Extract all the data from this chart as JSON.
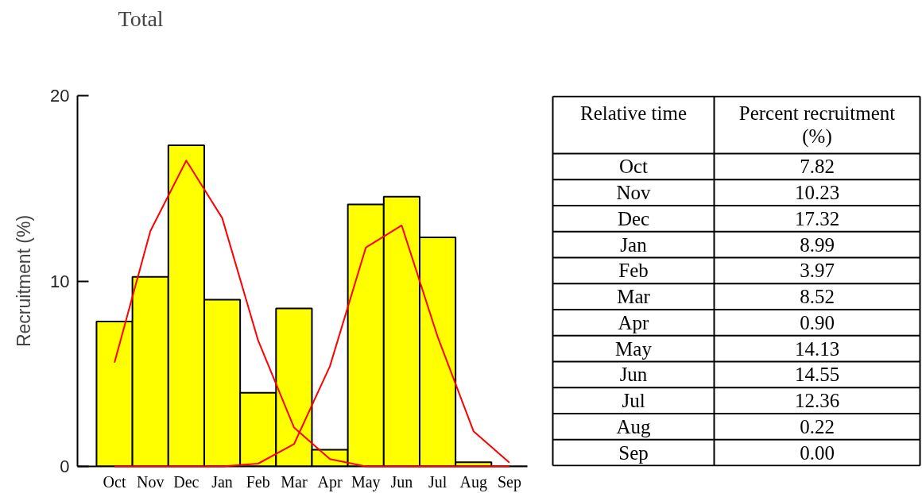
{
  "chart_data": {
    "type": "bar",
    "title": "Total",
    "ylabel": "Recruitment (%)",
    "categories": [
      "Oct",
      "Nov",
      "Dec",
      "Jan",
      "Feb",
      "Mar",
      "Apr",
      "May",
      "Jun",
      "Jul",
      "Aug",
      "Sep"
    ],
    "ylim": [
      0,
      20
    ],
    "yticks": [
      0,
      10,
      20
    ],
    "series": [
      {
        "color": "#ffff00",
        "values": [
          7.82,
          10.23,
          17.32,
          8.99,
          3.97,
          8.52,
          0.9,
          14.13,
          14.55,
          12.36,
          0.22,
          0.0
        ]
      },
      {
        "type": "line",
        "color": "#ff0000",
        "values": [
          5.6,
          12.7,
          16.5,
          13.4,
          6.8,
          2.1,
          0.4,
          0,
          0,
          0,
          0,
          0
        ]
      },
      {
        "type": "line",
        "color": "#ff0000",
        "values": [
          0,
          0,
          0,
          0,
          0.15,
          1.2,
          5.4,
          11.8,
          13.0,
          7.0,
          1.9,
          0.2
        ]
      }
    ],
    "annotations": [
      "Relative time",
      "Percent recruitment (%)",
      "Oct",
      "7.82",
      "Nov",
      "10.23",
      "Dec",
      "17.32",
      "Jan",
      "8.99",
      "Feb",
      "3.97",
      "Mar",
      "8.52",
      "Apr",
      "0.90",
      "May",
      "14.13",
      "Jun",
      "14.55",
      "Jul",
      "12.36",
      "Aug",
      "0.22",
      "Sep",
      "0.00"
    ],
    "grid": false,
    "marker": "none",
    "line_style": "solid"
  }
}
